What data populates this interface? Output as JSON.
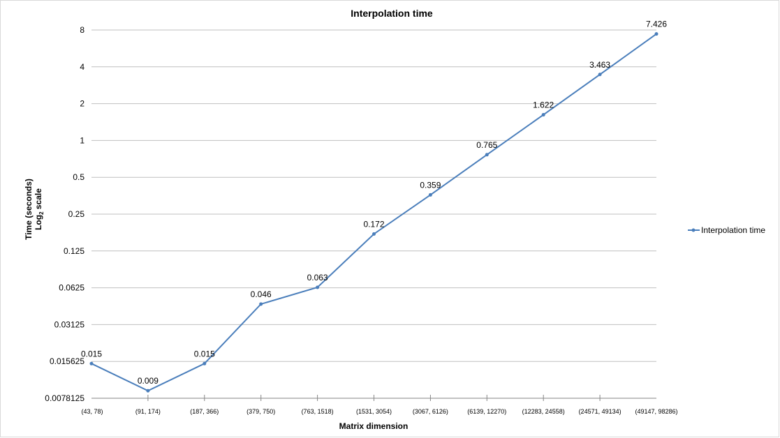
{
  "chart_data": {
    "type": "line",
    "title": "Interpolation time",
    "xlabel": "Matrix dimension",
    "ylabel_line1": "Time (seconds)",
    "ylabel_line2_prefix": "Log",
    "ylabel_line2_sub": "2",
    "ylabel_line2_suffix": " scale",
    "y_scale": "log2",
    "ylim": [
      0.0078125,
      8
    ],
    "y_ticks": [
      "8",
      "4",
      "2",
      "1",
      "0.5",
      "0.25",
      "0.125",
      "0.0625",
      "0.03125",
      "0.015625",
      "0.0078125"
    ],
    "y_tick_values": [
      8,
      4,
      2,
      1,
      0.5,
      0.25,
      0.125,
      0.0625,
      0.03125,
      0.015625,
      0.0078125
    ],
    "categories": [
      "(43, 78)",
      "(91, 174)",
      "(187, 366)",
      "(379, 750)",
      "(763, 1518)",
      "(1531, 3054)",
      "(3067, 6126)",
      "(6139, 12270)",
      "(12283, 24558)",
      "(24571, 49134)",
      "(49147, 98286)"
    ],
    "series": [
      {
        "name": "Interpolation time",
        "values": [
          0.015,
          0.009,
          0.015,
          0.046,
          0.063,
          0.172,
          0.359,
          0.765,
          1.622,
          3.463,
          7.426
        ],
        "labels": [
          "0.015",
          "0.009",
          "0.015",
          "0.046",
          "0.063",
          "0.172",
          "0.359",
          "0.765",
          "1.622",
          "3.463",
          "7.426"
        ]
      }
    ],
    "grid": "horizontal",
    "legend_position": "right",
    "colors": {
      "series": "#4a7ebb",
      "grid": "#bfbfbf",
      "axis": "#868686"
    }
  }
}
